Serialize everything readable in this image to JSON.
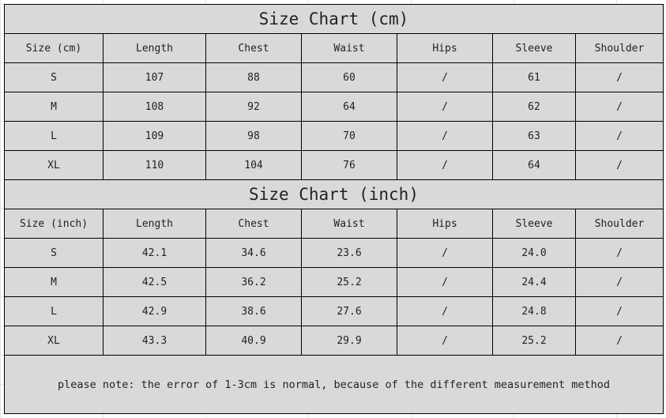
{
  "cm_chart": {
    "title": "Size Chart (cm)",
    "headers": [
      "Size (cm)",
      "Length",
      "Chest",
      "Waist",
      "Hips",
      "Sleeve",
      "Shoulder"
    ],
    "rows": [
      [
        "S",
        "107",
        "88",
        "60",
        "/",
        "61",
        "/"
      ],
      [
        "M",
        "108",
        "92",
        "64",
        "/",
        "62",
        "/"
      ],
      [
        "L",
        "109",
        "98",
        "70",
        "/",
        "63",
        "/"
      ],
      [
        "XL",
        "110",
        "104",
        "76",
        "/",
        "64",
        "/"
      ]
    ]
  },
  "inch_chart": {
    "title": "Size Chart (inch)",
    "headers": [
      "Size (inch)",
      "Length",
      "Chest",
      "Waist",
      "Hips",
      "Sleeve",
      "Shoulder"
    ],
    "rows": [
      [
        "S",
        "42.1",
        "34.6",
        "23.6",
        "/",
        "24.0",
        "/"
      ],
      [
        "M",
        "42.5",
        "36.2",
        "25.2",
        "/",
        "24.4",
        "/"
      ],
      [
        "L",
        "42.9",
        "38.6",
        "27.6",
        "/",
        "24.8",
        "/"
      ],
      [
        "XL",
        "43.3",
        "40.9",
        "29.9",
        "/",
        "25.2",
        "/"
      ]
    ]
  },
  "note": "please note: the error of 1-3cm is normal, because of the different measurement method"
}
